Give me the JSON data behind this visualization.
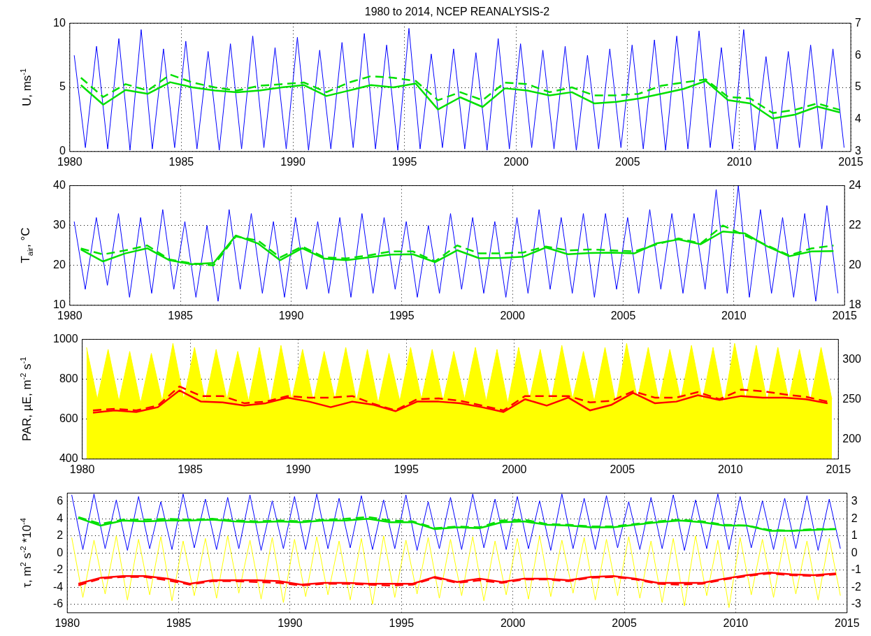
{
  "chart_data": [
    {
      "type": "line",
      "title": "1980 to 2014, NCEP REANALYSIS-2",
      "ylabel": "U, ms$^{-1}$",
      "xlim": [
        1980,
        2015
      ],
      "xticks": [
        1980,
        1985,
        1990,
        1995,
        2000,
        2005,
        2010,
        2015
      ],
      "ylim": [
        0,
        10
      ],
      "yticks": [
        0,
        5,
        10
      ],
      "y2lim": [
        3,
        7
      ],
      "y2ticks": [
        3,
        4,
        5,
        6,
        7
      ],
      "grid": true,
      "x": [
        1980.2,
        1980.7,
        1981.2,
        1981.7,
        1982.2,
        1982.7,
        1983.2,
        1983.7,
        1984.2,
        1984.7,
        1985.2,
        1985.7,
        1986.2,
        1986.7,
        1987.2,
        1987.7,
        1988.2,
        1988.7,
        1989.2,
        1989.7,
        1990.2,
        1990.7,
        1991.2,
        1991.7,
        1992.2,
        1992.7,
        1993.2,
        1993.7,
        1994.2,
        1994.7,
        1995.2,
        1995.7,
        1996.2,
        1996.7,
        1997.2,
        1997.7,
        1998.2,
        1998.7,
        1999.2,
        1999.7,
        2000.2,
        2000.7,
        2001.2,
        2001.7,
        2002.2,
        2002.7,
        2003.2,
        2003.7,
        2004.2,
        2004.7,
        2005.2,
        2005.7,
        2006.2,
        2006.7,
        2007.2,
        2007.7,
        2008.2,
        2008.7,
        2009.2,
        2009.7,
        2010.2,
        2010.7,
        2011.2,
        2011.7,
        2012.2,
        2012.7,
        2013.2,
        2013.7,
        2014.2,
        2014.7
      ],
      "series": [
        {
          "color": "#0000ff",
          "values": [
            7.5,
            0.3,
            8.2,
            0.2,
            8.8,
            0.1,
            9.5,
            0.2,
            8.0,
            0.3,
            8.6,
            0.2,
            7.8,
            0.1,
            8.4,
            0.2,
            9.0,
            0.3,
            8.1,
            0.2,
            8.9,
            0.1,
            7.9,
            0.2,
            8.5,
            0.3,
            9.2,
            0.2,
            8.3,
            0.1,
            9.6,
            0.2,
            7.6,
            0.3,
            8.0,
            0.2,
            7.7,
            0.1,
            8.8,
            0.2,
            8.4,
            0.3,
            7.9,
            0.2,
            8.2,
            0.1,
            7.5,
            0.2,
            8.0,
            0.3,
            8.3,
            0.2,
            8.7,
            0.1,
            9.0,
            0.2,
            9.4,
            0.3,
            8.1,
            0.2,
            9.5,
            0.1,
            7.4,
            0.2,
            7.8,
            0.3,
            8.3,
            0.2,
            8.0,
            0.3
          ]
        },
        {
          "color": "#00e000",
          "axis": "y2",
          "line_style": "dashed",
          "x": [
            1980.5,
            1981.5,
            1982.5,
            1983.5,
            1984.5,
            1985.5,
            1986.5,
            1987.5,
            1988.5,
            1989.5,
            1990.5,
            1991.5,
            1992.5,
            1993.5,
            1994.5,
            1995.5,
            1996.5,
            1997.5,
            1998.5,
            1999.5,
            2000.5,
            2001.5,
            2002.5,
            2003.5,
            2004.5,
            2005.5,
            2006.5,
            2007.5,
            2008.5,
            2009.5,
            2010.5,
            2011.5,
            2012.5,
            2013.5,
            2014.5
          ],
          "values": [
            5.3,
            4.7,
            5.1,
            4.9,
            5.4,
            5.15,
            5.0,
            4.9,
            5.05,
            5.1,
            5.15,
            4.85,
            5.15,
            5.35,
            5.3,
            5.2,
            4.6,
            4.85,
            4.6,
            5.15,
            5.1,
            4.85,
            5.0,
            4.75,
            4.75,
            4.8,
            5.05,
            5.15,
            5.25,
            4.7,
            4.65,
            4.2,
            4.3,
            4.5,
            4.3
          ]
        },
        {
          "color": "#00e000",
          "axis": "y2",
          "x": [
            1980.5,
            1981.5,
            1982.5,
            1983.5,
            1984.5,
            1985.5,
            1986.5,
            1987.5,
            1988.5,
            1989.5,
            1990.5,
            1991.5,
            1992.5,
            1993.5,
            1994.5,
            1995.5,
            1996.5,
            1997.5,
            1998.5,
            1999.5,
            2000.5,
            2001.5,
            2002.5,
            2003.5,
            2004.5,
            2005.5,
            2006.5,
            2007.5,
            2008.5,
            2009.5,
            2010.5,
            2011.5,
            2012.5,
            2013.5,
            2014.5
          ],
          "values": [
            5.07,
            4.46,
            4.92,
            4.8,
            5.16,
            5.0,
            4.9,
            4.85,
            4.9,
            5.0,
            5.07,
            4.73,
            4.9,
            5.07,
            5.0,
            5.12,
            4.31,
            4.69,
            4.39,
            4.97,
            4.9,
            4.75,
            4.85,
            4.5,
            4.55,
            4.65,
            4.8,
            4.95,
            5.2,
            4.6,
            4.5,
            4.03,
            4.15,
            4.4,
            4.22
          ]
        }
      ]
    },
    {
      "type": "line",
      "ylabel": "T$_{air}$, °C",
      "xlim": [
        1980,
        2015
      ],
      "xticks": [
        1980,
        1985,
        1990,
        1995,
        2000,
        2005,
        2010,
        2015
      ],
      "ylim": [
        10,
        40
      ],
      "yticks": [
        10,
        20,
        30,
        40
      ],
      "y2lim": [
        18,
        24
      ],
      "y2ticks": [
        18,
        20,
        22,
        24
      ],
      "grid": true,
      "x": [
        1980.2,
        1980.7,
        1981.2,
        1981.7,
        1982.2,
        1982.7,
        1983.2,
        1983.7,
        1984.2,
        1984.7,
        1985.2,
        1985.7,
        1986.2,
        1986.7,
        1987.2,
        1987.7,
        1988.2,
        1988.7,
        1989.2,
        1989.7,
        1990.2,
        1990.7,
        1991.2,
        1991.7,
        1992.2,
        1992.7,
        1993.2,
        1993.7,
        1994.2,
        1994.7,
        1995.2,
        1995.7,
        1996.2,
        1996.7,
        1997.2,
        1997.7,
        1998.2,
        1998.7,
        1999.2,
        1999.7,
        2000.2,
        2000.7,
        2001.2,
        2001.7,
        2002.2,
        2002.7,
        2003.2,
        2003.7,
        2004.2,
        2004.7,
        2005.2,
        2005.7,
        2006.2,
        2006.7,
        2007.2,
        2007.7,
        2008.2,
        2008.7,
        2009.2,
        2009.7,
        2010.2,
        2010.7,
        2011.2,
        2011.7,
        2012.2,
        2012.7,
        2013.2,
        2013.7,
        2014.2,
        2014.7
      ],
      "series": [
        {
          "color": "#0000ff",
          "values": [
            31,
            14,
            32,
            15,
            33,
            12,
            32,
            13,
            34,
            14,
            31,
            12,
            30,
            11,
            34,
            14,
            33,
            13,
            31,
            12,
            32,
            14,
            31,
            13,
            32,
            12,
            33,
            13,
            32,
            14,
            31,
            12,
            30,
            13,
            33,
            14,
            32,
            13,
            31,
            12,
            32,
            13,
            34,
            14,
            32,
            13,
            33,
            12,
            33,
            14,
            32,
            13,
            34,
            14,
            33,
            13,
            33,
            14,
            39,
            13,
            40,
            12,
            34,
            13,
            32,
            12,
            33,
            11,
            35,
            13
          ]
        },
        {
          "color": "#00e000",
          "axis": "y2",
          "line_style": "dashed",
          "x": [
            1980.5,
            1981.5,
            1982.5,
            1983.5,
            1984.5,
            1985.5,
            1986.5,
            1987.5,
            1988.5,
            1989.5,
            1990.5,
            1991.5,
            1992.5,
            1993.5,
            1994.5,
            1995.5,
            1996.5,
            1997.5,
            1998.5,
            1999.5,
            2000.5,
            2001.5,
            2002.5,
            2003.5,
            2004.5,
            2005.5,
            2006.5,
            2007.5,
            2008.5,
            2009.5,
            2010.5,
            2011.5,
            2012.5,
            2013.5,
            2014.5
          ],
          "values": [
            20.85,
            20.55,
            20.75,
            21.0,
            20.3,
            20.1,
            20.0,
            21.45,
            21.25,
            20.4,
            20.95,
            20.4,
            20.35,
            20.5,
            20.7,
            20.7,
            20.2,
            21.0,
            20.6,
            20.6,
            20.65,
            20.95,
            20.75,
            20.8,
            20.75,
            20.7,
            21.05,
            21.35,
            21.1,
            22.0,
            21.5,
            21.0,
            20.5,
            20.85,
            21.0
          ]
        },
        {
          "color": "#00e000",
          "axis": "y2",
          "x": [
            1980.5,
            1981.5,
            1982.5,
            1983.5,
            1984.5,
            1985.5,
            1986.5,
            1987.5,
            1988.5,
            1989.5,
            1990.5,
            1991.5,
            1992.5,
            1993.5,
            1994.5,
            1995.5,
            1996.5,
            1997.5,
            1998.5,
            1999.5,
            2000.5,
            2001.5,
            2002.5,
            2003.5,
            2004.5,
            2005.5,
            2006.5,
            2007.5,
            2008.5,
            2009.5,
            2010.5,
            2011.5,
            2012.5,
            2013.5,
            2014.5
          ],
          "values": [
            20.8,
            20.2,
            20.6,
            20.86,
            20.26,
            20.06,
            20.12,
            21.5,
            21.1,
            20.26,
            20.86,
            20.34,
            20.26,
            20.4,
            20.54,
            20.56,
            20.16,
            20.76,
            20.36,
            20.38,
            20.44,
            20.9,
            20.56,
            20.62,
            20.64,
            20.6,
            21.1,
            21.3,
            21.06,
            21.7,
            21.6,
            20.96,
            20.46,
            20.7,
            20.72
          ]
        }
      ]
    },
    {
      "type": "line",
      "ylabel": "PAR, µE, m$^{-2}$ s$^{-1}$",
      "xlim": [
        1980,
        2015
      ],
      "xticks": [
        1980,
        1985,
        1990,
        1995,
        2000,
        2005,
        2010,
        2015
      ],
      "ylim": [
        400,
        1000
      ],
      "yticks": [
        400,
        600,
        800,
        1000
      ],
      "y2lim": [
        175,
        325
      ],
      "y2ticks": [
        200,
        250,
        300
      ],
      "grid": true,
      "x": [
        1980.2,
        1980.7,
        1981.2,
        1981.7,
        1982.2,
        1982.7,
        1983.2,
        1983.7,
        1984.2,
        1984.7,
        1985.2,
        1985.7,
        1986.2,
        1986.7,
        1987.2,
        1987.7,
        1988.2,
        1988.7,
        1989.2,
        1989.7,
        1990.2,
        1990.7,
        1991.2,
        1991.7,
        1992.2,
        1992.7,
        1993.2,
        1993.7,
        1994.2,
        1994.7,
        1995.2,
        1995.7,
        1996.2,
        1996.7,
        1997.2,
        1997.7,
        1998.2,
        1998.7,
        1999.2,
        1999.7,
        2000.2,
        2000.7,
        2001.2,
        2001.7,
        2002.2,
        2002.7,
        2003.2,
        2003.7,
        2004.2,
        2004.7,
        2005.2,
        2005.7,
        2006.2,
        2006.7,
        2007.2,
        2007.7,
        2008.2,
        2008.7,
        2009.2,
        2009.7,
        2010.2,
        2010.7,
        2011.2,
        2011.7,
        2012.2,
        2012.7,
        2013.2,
        2013.7,
        2014.2,
        2014.7
      ],
      "series": [
        {
          "type": "area",
          "color": "#ffff00",
          "values": [
            960,
            700,
            950,
            690,
            940,
            680,
            930,
            690,
            980,
            700,
            960,
            690,
            950,
            700,
            940,
            690,
            960,
            680,
            970,
            700,
            950,
            690,
            940,
            700,
            960,
            690,
            950,
            680,
            930,
            690,
            960,
            700,
            950,
            690,
            940,
            700,
            960,
            690,
            950,
            680,
            960,
            700,
            950,
            690,
            970,
            700,
            940,
            690,
            960,
            680,
            980,
            700,
            960,
            690,
            950,
            700,
            970,
            690,
            960,
            680,
            980,
            700,
            970,
            690,
            960,
            700,
            950,
            690,
            960,
            700
          ]
        },
        {
          "color": "#ff0000",
          "axis": "y2",
          "line_style": "dashed",
          "x": [
            1980.5,
            1981.5,
            1982.5,
            1983.5,
            1984.5,
            1985.5,
            1986.5,
            1987.5,
            1988.5,
            1989.5,
            1990.5,
            1991.5,
            1992.5,
            1993.5,
            1994.5,
            1995.5,
            1996.5,
            1997.5,
            1998.5,
            1999.5,
            2000.5,
            2001.5,
            2002.5,
            2003.5,
            2004.5,
            2005.5,
            2006.5,
            2007.5,
            2008.5,
            2009.5,
            2010.5,
            2011.5,
            2012.5,
            2013.5,
            2014.5
          ],
          "values": [
            236,
            238,
            236,
            242,
            266,
            254,
            254,
            245,
            247,
            254,
            252,
            252,
            254,
            244,
            236,
            250,
            251,
            248,
            242,
            236,
            254,
            254,
            254,
            246,
            248,
            260,
            252,
            252,
            259,
            250,
            262,
            260,
            256,
            253,
            247
          ]
        },
        {
          "color": "#ff0000",
          "axis": "y2",
          "x": [
            1980.5,
            1981.5,
            1982.5,
            1983.5,
            1984.5,
            1985.5,
            1986.5,
            1987.5,
            1988.5,
            1989.5,
            1990.5,
            1991.5,
            1992.5,
            1993.5,
            1994.5,
            1995.5,
            1996.5,
            1997.5,
            1998.5,
            1999.5,
            2000.5,
            2001.5,
            2002.5,
            2003.5,
            2004.5,
            2005.5,
            2006.5,
            2007.5,
            2008.5,
            2009.5,
            2010.5,
            2011.5,
            2012.5,
            2013.5,
            2014.5
          ],
          "values": [
            233,
            236,
            234,
            240,
            261,
            247,
            246,
            242,
            245,
            252,
            247,
            240,
            247,
            243,
            235,
            247,
            247,
            245,
            240,
            234,
            250,
            242,
            252,
            236,
            243,
            258,
            245,
            247,
            255,
            249,
            254,
            252,
            252,
            250,
            245
          ]
        }
      ]
    },
    {
      "type": "line",
      "ylabel": "τ, m$^{2}$ s$^{-2}$ *10$^{-4}$",
      "xlim": [
        1980,
        2015
      ],
      "xticks": [
        1980,
        1985,
        1990,
        1995,
        2000,
        2005,
        2010,
        2015
      ],
      "ylim": [
        -7,
        7
      ],
      "yticks": [
        -6,
        -4,
        -2,
        0,
        2,
        4,
        6
      ],
      "y2lim": [
        -3.5,
        3.5
      ],
      "y2ticks": [
        -3,
        -2,
        -1,
        0,
        1,
        2,
        3
      ],
      "grid": true,
      "x": [
        1980.2,
        1980.7,
        1981.2,
        1981.7,
        1982.2,
        1982.7,
        1983.2,
        1983.7,
        1984.2,
        1984.7,
        1985.2,
        1985.7,
        1986.2,
        1986.7,
        1987.2,
        1987.7,
        1988.2,
        1988.7,
        1989.2,
        1989.7,
        1990.2,
        1990.7,
        1991.2,
        1991.7,
        1992.2,
        1992.7,
        1993.2,
        1993.7,
        1994.2,
        1994.7,
        1995.2,
        1995.7,
        1996.2,
        1996.7,
        1997.2,
        1997.7,
        1998.2,
        1998.7,
        1999.2,
        1999.7,
        2000.2,
        2000.7,
        2001.2,
        2001.7,
        2002.2,
        2002.7,
        2003.2,
        2003.7,
        2004.2,
        2004.7,
        2005.2,
        2005.7,
        2006.2,
        2006.7,
        2007.2,
        2007.7,
        2008.2,
        2008.7,
        2009.2,
        2009.7,
        2010.2,
        2010.7,
        2011.2,
        2011.7,
        2012.2,
        2012.7,
        2013.2,
        2013.7,
        2014.2,
        2014.7
      ],
      "series": [
        {
          "color": "#ffff00",
          "values": [
            1.8,
            -5.2,
            1.5,
            -4.8,
            2.0,
            -5.5,
            1.6,
            -4.9,
            1.9,
            -5.6,
            1.4,
            -5.0,
            1.7,
            -5.3,
            2.0,
            -4.7,
            1.5,
            -5.4,
            1.8,
            -5.8,
            1.6,
            -5.1,
            1.9,
            -4.9,
            1.4,
            -5.5,
            1.7,
            -6.0,
            2.0,
            -5.2,
            1.5,
            -4.8,
            1.8,
            -5.3,
            1.6,
            -5.0,
            1.9,
            -5.6,
            1.4,
            -4.9,
            1.7,
            -5.4,
            2.0,
            -5.1,
            1.5,
            -4.7,
            1.8,
            -5.5,
            1.6,
            -5.0,
            1.9,
            -5.3,
            1.4,
            -5.8,
            1.7,
            -6.2,
            2.0,
            -5.0,
            1.5,
            -6.4,
            1.8,
            -4.9,
            1.6,
            -5.2,
            1.9,
            -4.8,
            1.4,
            -5.5,
            1.7,
            -5.0
          ]
        },
        {
          "color": "#0000ff",
          "values": [
            6.8,
            0.4,
            6.9,
            0.5,
            6.2,
            0.3,
            6.6,
            0.5,
            6.0,
            0.4,
            6.9,
            0.6,
            6.3,
            0.4,
            6.5,
            0.5,
            6.8,
            0.3,
            6.1,
            0.5,
            6.6,
            0.4,
            6.9,
            0.5,
            6.4,
            0.6,
            6.7,
            0.4,
            6.2,
            0.5,
            6.8,
            0.3,
            6.0,
            0.5,
            6.5,
            0.4,
            6.9,
            0.6,
            6.3,
            0.4,
            6.6,
            0.5,
            6.1,
            0.3,
            6.9,
            0.5,
            6.4,
            0.4,
            6.7,
            0.6,
            6.0,
            0.4,
            6.5,
            0.5,
            6.8,
            0.3,
            6.2,
            0.5,
            6.9,
            0.4,
            6.6,
            0.6,
            6.1,
            0.4,
            6.4,
            0.5,
            6.7,
            0.3,
            6.3,
            0.5
          ]
        },
        {
          "color": "#00e000",
          "axis": "y2",
          "line_style": "dashed",
          "x": [
            1980.5,
            1981.5,
            1982.5,
            1983.5,
            1984.5,
            1985.5,
            1986.5,
            1987.5,
            1988.5,
            1989.5,
            1990.5,
            1991.5,
            1992.5,
            1993.5,
            1994.5,
            1995.5,
            1996.5,
            1997.5,
            1998.5,
            1999.5,
            2000.5,
            2001.5,
            2002.5,
            2003.5,
            2004.5,
            2005.5,
            2006.5,
            2007.5,
            2008.5,
            2009.5,
            2010.5,
            2011.5,
            2012.5,
            2013.5,
            2014.5
          ],
          "values": [
            2.1,
            1.7,
            1.95,
            1.95,
            2.0,
            1.95,
            2.0,
            1.9,
            1.85,
            1.9,
            1.85,
            1.95,
            2.0,
            2.1,
            1.9,
            1.85,
            1.45,
            1.55,
            1.5,
            1.9,
            1.95,
            1.7,
            1.65,
            1.55,
            1.55,
            1.7,
            1.85,
            1.95,
            1.85,
            1.65,
            1.6,
            1.35,
            1.3,
            1.4,
            1.4
          ]
        },
        {
          "color": "#00e000",
          "axis": "y2",
          "x": [
            1980.5,
            1981.5,
            1982.5,
            1983.5,
            1984.5,
            1985.5,
            1986.5,
            1987.5,
            1988.5,
            1989.5,
            1990.5,
            1991.5,
            1992.5,
            1993.5,
            1994.5,
            1995.5,
            1996.5,
            1997.5,
            1998.5,
            1999.5,
            2000.5,
            2001.5,
            2002.5,
            2003.5,
            2004.5,
            2005.5,
            2006.5,
            2007.5,
            2008.5,
            2009.5,
            2010.5,
            2011.5,
            2012.5,
            2013.5,
            2014.5
          ],
          "values": [
            2.05,
            1.6,
            1.9,
            1.85,
            1.9,
            1.9,
            1.95,
            1.85,
            1.8,
            1.85,
            1.8,
            1.9,
            1.9,
            2.0,
            1.8,
            1.8,
            1.4,
            1.5,
            1.45,
            1.8,
            1.85,
            1.65,
            1.6,
            1.5,
            1.5,
            1.65,
            1.8,
            1.9,
            1.8,
            1.6,
            1.6,
            1.3,
            1.3,
            1.35,
            1.4
          ]
        },
        {
          "color": "#ff0000",
          "axis": "y2",
          "line_style": "dashed",
          "x": [
            1980.5,
            1981.5,
            1982.5,
            1983.5,
            1984.5,
            1985.5,
            1986.5,
            1987.5,
            1988.5,
            1989.5,
            1990.5,
            1991.5,
            1992.5,
            1993.5,
            1994.5,
            1995.5,
            1996.5,
            1997.5,
            1998.5,
            1999.5,
            2000.5,
            2001.5,
            2002.5,
            2003.5,
            2004.5,
            2005.5,
            2006.5,
            2007.5,
            2008.5,
            2009.5,
            2010.5,
            2011.5,
            2012.5,
            2013.5,
            2014.5
          ],
          "values": [
            -1.9,
            -1.5,
            -1.4,
            -1.4,
            -1.6,
            -1.85,
            -1.65,
            -1.65,
            -1.7,
            -1.75,
            -1.9,
            -1.8,
            -1.8,
            -1.85,
            -1.9,
            -1.85,
            -1.45,
            -1.75,
            -1.6,
            -1.75,
            -1.55,
            -1.55,
            -1.65,
            -1.45,
            -1.4,
            -1.55,
            -1.8,
            -1.85,
            -1.8,
            -1.55,
            -1.35,
            -1.2,
            -1.3,
            -1.35,
            -1.25
          ]
        },
        {
          "color": "#ff0000",
          "axis": "y2",
          "x": [
            1980.5,
            1981.5,
            1982.5,
            1983.5,
            1984.5,
            1985.5,
            1986.5,
            1987.5,
            1988.5,
            1989.5,
            1990.5,
            1991.5,
            1992.5,
            1993.5,
            1994.5,
            1995.5,
            1996.5,
            1997.5,
            1998.5,
            1999.5,
            2000.5,
            2001.5,
            2002.5,
            2003.5,
            2004.5,
            2005.5,
            2006.5,
            2007.5,
            2008.5,
            2009.5,
            2010.5,
            2011.5,
            2012.5,
            2013.5,
            2014.5
          ],
          "values": [
            -1.8,
            -1.45,
            -1.35,
            -1.35,
            -1.5,
            -1.8,
            -1.6,
            -1.6,
            -1.6,
            -1.65,
            -1.85,
            -1.75,
            -1.75,
            -1.8,
            -1.8,
            -1.8,
            -1.4,
            -1.7,
            -1.5,
            -1.7,
            -1.5,
            -1.5,
            -1.6,
            -1.4,
            -1.35,
            -1.5,
            -1.75,
            -1.75,
            -1.75,
            -1.5,
            -1.3,
            -1.15,
            -1.25,
            -1.3,
            -1.2
          ]
        }
      ]
    }
  ]
}
